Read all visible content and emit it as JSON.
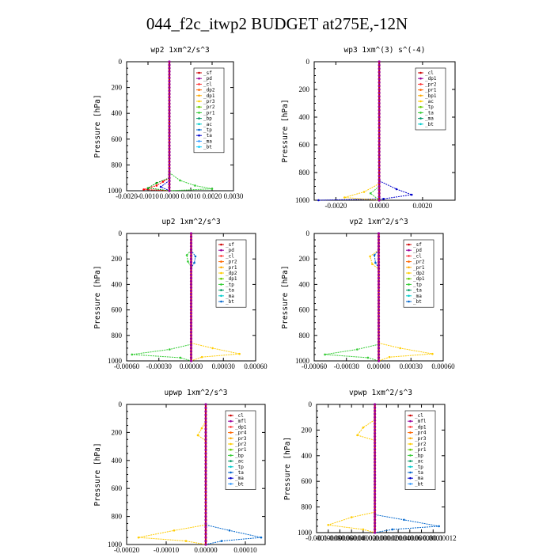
{
  "title": "044_f2c_itwp2  BUDGET at275E,-12N",
  "chart_data": [
    {
      "type": "line",
      "title": "wp2   1xm^2/s^3",
      "ylabel": "Pressure [hPa]",
      "xlim": [
        -0.002,
        0.003
      ],
      "xticks": [
        "-0.0020",
        "-0.0010",
        "0.0000",
        "0.0010",
        "0.0020",
        "0.0030"
      ],
      "xtick_values": [
        -0.002,
        -0.001,
        0,
        0.001,
        0.002,
        0.003
      ],
      "ylim": [
        1000,
        0
      ],
      "yticks": [
        "0",
        "200",
        "400",
        "600",
        "800",
        "1000"
      ],
      "legend": [
        "_sf",
        "_pd",
        "_cl",
        "_dp2",
        "_dp1",
        "_pr3",
        "_pr2",
        "_pr1",
        "_bp",
        "_ac",
        "_tp",
        "_ta",
        "_ma",
        "_bt"
      ],
      "legend_position": "top-right",
      "series": [
        {
          "name": "_dp1",
          "color": "#ff0000",
          "points": [
            [
              0,
              900
            ],
            [
              -0.0003,
              930
            ],
            [
              -0.0006,
              960
            ],
            [
              -0.0012,
              990
            ],
            [
              0,
              1000
            ]
          ]
        },
        {
          "name": "_pr1",
          "color": "#33cc33",
          "points": [
            [
              0,
              860
            ],
            [
              0.0005,
              920
            ],
            [
              0.0012,
              960
            ],
            [
              0.002,
              985
            ],
            [
              0,
              1000
            ]
          ]
        },
        {
          "name": "_dp2",
          "color": "#009900",
          "points": [
            [
              0,
              900
            ],
            [
              -0.0006,
              940
            ],
            [
              -0.001,
              980
            ],
            [
              0,
              1000
            ]
          ]
        },
        {
          "name": "_ta",
          "color": "#0000cc",
          "points": [
            [
              0,
              920
            ],
            [
              -0.0004,
              970
            ],
            [
              0,
              1000
            ]
          ]
        },
        {
          "name": "_bt",
          "color": "#9933cc",
          "points": [
            [
              0,
              0
            ],
            [
              0,
              1000
            ]
          ]
        }
      ]
    },
    {
      "type": "line",
      "title": "wp3   1xm^(3) s^(-4)",
      "ylabel": "Pressure [hPa]",
      "xlim": [
        -0.003,
        0.0035
      ],
      "xticks": [
        "-0.0020",
        "0.0000",
        "0.0020"
      ],
      "xtick_values": [
        -0.002,
        0,
        0.002
      ],
      "ylim": [
        1000,
        0
      ],
      "yticks": [
        "0",
        "200",
        "400",
        "600",
        "800",
        "1000"
      ],
      "legend": [
        "_cl",
        "_dp1",
        "_pr2",
        "_pr1",
        "_bp1",
        "_ac",
        "_tp",
        "_ta",
        "_ma",
        "_bt"
      ],
      "legend_position": "top-right",
      "series": [
        {
          "name": "_ta",
          "color": "#0000cc",
          "points": [
            [
              0,
              860
            ],
            [
              0.0008,
              920
            ],
            [
              0.0015,
              960
            ],
            [
              0.0002,
              990
            ],
            [
              -0.0028,
              1000
            ]
          ]
        },
        {
          "name": "_pr1",
          "color": "#ffcc00",
          "points": [
            [
              0,
              880
            ],
            [
              -0.0007,
              940
            ],
            [
              -0.0016,
              980
            ],
            [
              0,
              1000
            ]
          ]
        },
        {
          "name": "_ac",
          "color": "#33cc33",
          "points": [
            [
              0,
              900
            ],
            [
              -0.0004,
              950
            ],
            [
              0,
              1000
            ]
          ]
        },
        {
          "name": "_cl",
          "color": "#cc0000",
          "points": [
            [
              0,
              0
            ],
            [
              0,
              1000
            ]
          ]
        }
      ]
    },
    {
      "type": "line",
      "title": "up2   1xm^2/s^3",
      "ylabel": "Pressure [hPa]",
      "xlim": [
        -0.0006,
        0.0006
      ],
      "xticks": [
        "-0.00060",
        "-0.00030",
        "0.00000",
        "0.00030",
        "0.00060"
      ],
      "xtick_values": [
        -0.0006,
        -0.0003,
        0,
        0.0003,
        0.0006
      ],
      "ylim": [
        1000,
        0
      ],
      "yticks": [
        "0",
        "200",
        "400",
        "600",
        "800",
        "1000"
      ],
      "legend": [
        "_sf",
        "_pd",
        "_cl",
        "_pr2",
        "_pr1",
        "_dp2",
        "_dp1",
        "_tp",
        "_ta",
        "_ma",
        "_bt"
      ],
      "legend_position": "top-right",
      "series": [
        {
          "name": "_pr1",
          "color": "#ffcc00",
          "points": [
            [
              0,
              860
            ],
            [
              0.0002,
              900
            ],
            [
              0.00045,
              945
            ],
            [
              0.0001,
              970
            ],
            [
              0,
              1000
            ]
          ]
        },
        {
          "name": "_dp2",
          "color": "#33cc33",
          "points": [
            [
              0,
              870
            ],
            [
              -0.0002,
              910
            ],
            [
              -0.00055,
              950
            ],
            [
              -0.0001,
              975
            ],
            [
              0,
              1000
            ]
          ]
        },
        {
          "name": "_dp2b",
          "color": "#33cc33",
          "points": [
            [
              0,
              130
            ],
            [
              -4e-05,
              170
            ],
            [
              -3e-05,
              220
            ],
            [
              0,
              260
            ]
          ]
        },
        {
          "name": "_tp",
          "color": "#0066cc",
          "points": [
            [
              0,
              130
            ],
            [
              4e-05,
              180
            ],
            [
              3e-05,
              230
            ],
            [
              0,
              270
            ]
          ]
        },
        {
          "name": "_bt",
          "color": "#cc0000",
          "points": [
            [
              0,
              0
            ],
            [
              0,
              1000
            ]
          ]
        }
      ]
    },
    {
      "type": "line",
      "title": "vp2   1xm^2/s^3",
      "ylabel": "Pressure [hPa]",
      "xlim": [
        -0.0006,
        0.0006
      ],
      "xticks": [
        "-0.00060",
        "-0.00030",
        "0.00000",
        "0.00030",
        "0.00060"
      ],
      "xtick_values": [
        -0.0006,
        -0.0003,
        0,
        0.0003,
        0.0006
      ],
      "ylim": [
        1000,
        0
      ],
      "yticks": [
        "0",
        "200",
        "400",
        "600",
        "800",
        "1000"
      ],
      "legend": [
        "_sf",
        "_pd",
        "_cl",
        "_pr2",
        "_pr1",
        "_dp2",
        "_dp1",
        "_tp",
        "_ta",
        "_ma",
        "_bt"
      ],
      "legend_position": "top-right",
      "series": [
        {
          "name": "_pr1",
          "color": "#ffcc00",
          "points": [
            [
              0,
              860
            ],
            [
              0.0002,
              900
            ],
            [
              0.0005,
              945
            ],
            [
              0.0001,
              970
            ],
            [
              0,
              1000
            ]
          ]
        },
        {
          "name": "_dp2",
          "color": "#33cc33",
          "points": [
            [
              0,
              870
            ],
            [
              -0.0002,
              910
            ],
            [
              -0.0005,
              950
            ],
            [
              -0.0001,
              975
            ],
            [
              0,
              1000
            ]
          ]
        },
        {
          "name": "_pr1b",
          "color": "#ffcc00",
          "points": [
            [
              0,
              130
            ],
            [
              -8e-05,
              180
            ],
            [
              -6e-05,
              240
            ],
            [
              0,
              280
            ]
          ]
        },
        {
          "name": "_tp",
          "color": "#0066cc",
          "points": [
            [
              0,
              130
            ],
            [
              -4e-05,
              170
            ],
            [
              -3e-05,
              230
            ],
            [
              0,
              270
            ]
          ]
        },
        {
          "name": "_bt",
          "color": "#cc0000",
          "points": [
            [
              0,
              0
            ],
            [
              0,
              1000
            ]
          ]
        }
      ]
    },
    {
      "type": "line",
      "title": "upwp   1xm^2/s^3",
      "ylabel": "Pressure [hPa]",
      "xlim": [
        -0.0002,
        0.00015
      ],
      "xticks": [
        "-0.00020",
        "-0.00010",
        "0.00000",
        "0.00010"
      ],
      "xtick_values": [
        -0.0002,
        -0.0001,
        0,
        0.0001
      ],
      "ylim": [
        1000,
        0
      ],
      "yticks": [
        "0",
        "200",
        "400",
        "600",
        "800",
        "1000"
      ],
      "legend": [
        "_cl",
        "_mfl",
        "_dp1",
        "_pr4",
        "_pr3",
        "_pr2",
        "_pr1",
        "_bp",
        "_ac",
        "_tp",
        "_ta",
        "_ma",
        "_bt"
      ],
      "legend_position": "top-right",
      "series": [
        {
          "name": "_pr1",
          "color": "#ffcc00",
          "points": [
            [
              0,
              860
            ],
            [
              -8e-05,
              900
            ],
            [
              -0.00017,
              950
            ],
            [
              -5e-05,
              975
            ],
            [
              0,
              1000
            ]
          ]
        },
        {
          "name": "_tp",
          "color": "#0066cc",
          "points": [
            [
              0,
              860
            ],
            [
              6e-05,
              900
            ],
            [
              0.00014,
              950
            ],
            [
              4e-05,
              975
            ],
            [
              0,
              1000
            ]
          ]
        },
        {
          "name": "_pr1b",
          "color": "#ffcc00",
          "points": [
            [
              0,
              120
            ],
            [
              -1e-05,
              170
            ],
            [
              -2e-05,
              220
            ],
            [
              0,
              260
            ]
          ]
        },
        {
          "name": "_bt",
          "color": "#9933cc",
          "points": [
            [
              0,
              0
            ],
            [
              0,
              1000
            ]
          ]
        }
      ]
    },
    {
      "type": "line",
      "title": "vpwp   1xm^2/s^3",
      "ylabel": "Pressure [hPa]",
      "xlim": [
        -0.0001,
        0.00012
      ],
      "xticks": [
        "-0.0001",
        "-0.00008",
        "-0.00006",
        "-0.00004",
        "-0.00002",
        "0.00000",
        "0.00002",
        "0.00004",
        "0.00006",
        "0.00008",
        "0.0001",
        "0.00012"
      ],
      "xtick_values": [
        -0.0001,
        -8e-05,
        -6e-05,
        -4e-05,
        -2e-05,
        0,
        2e-05,
        4e-05,
        6e-05,
        8e-05,
        0.0001,
        0.00012
      ],
      "ylim": [
        1000,
        0
      ],
      "yticks": [
        "0",
        "200",
        "400",
        "600",
        "800",
        "1000"
      ],
      "legend": [
        "_cl",
        "_mfl",
        "_dp1",
        "_pr4",
        "_pr3",
        "_pr2",
        "_pr1",
        "_bp",
        "_ac",
        "_tp",
        "_ta",
        "_ma",
        "_bt"
      ],
      "legend_position": "top-right",
      "series": [
        {
          "name": "_pr1",
          "color": "#ffcc00",
          "points": [
            [
              0,
              840
            ],
            [
              -4e-05,
              880
            ],
            [
              -8e-05,
              940
            ],
            [
              -2e-05,
              975
            ],
            [
              0,
              1000
            ]
          ]
        },
        {
          "name": "_tp",
          "color": "#0066cc",
          "points": [
            [
              0,
              860
            ],
            [
              5e-05,
              900
            ],
            [
              0.00011,
              950
            ],
            [
              3e-05,
              975
            ],
            [
              0,
              1000
            ]
          ]
        },
        {
          "name": "_pr1b",
          "color": "#ffcc00",
          "points": [
            [
              0,
              120
            ],
            [
              -2e-05,
              180
            ],
            [
              -3e-05,
              240
            ],
            [
              0,
              280
            ]
          ]
        },
        {
          "name": "_bt",
          "color": "#9933cc",
          "points": [
            [
              0,
              0
            ],
            [
              0,
              1000
            ]
          ]
        }
      ]
    }
  ]
}
